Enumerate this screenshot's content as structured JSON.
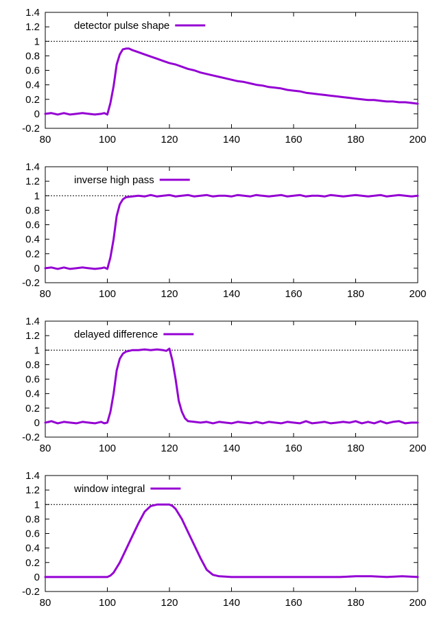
{
  "colors": {
    "series": "#9400d3",
    "axis": "#000000",
    "reference": "#000000"
  },
  "chart_data": [
    {
      "type": "line",
      "legend_position": "top-left",
      "xlim": [
        80,
        200
      ],
      "ylim": [
        -0.2,
        1.4
      ],
      "xticks": [
        80,
        100,
        120,
        140,
        160,
        180,
        200
      ],
      "yticks": [
        -0.2,
        0,
        0.2,
        0.4,
        0.6,
        0.8,
        1,
        1.2,
        1.4
      ],
      "reference_line": {
        "y": 1,
        "style": "dotted"
      },
      "series": [
        {
          "name": "detector pulse shape",
          "x": [
            80,
            82,
            84,
            86,
            88,
            90,
            92,
            94,
            96,
            98,
            99,
            100,
            101,
            102,
            103,
            104,
            105,
            106,
            107,
            108,
            110,
            112,
            114,
            116,
            118,
            120,
            122,
            124,
            126,
            128,
            130,
            132,
            134,
            136,
            138,
            140,
            142,
            144,
            146,
            148,
            150,
            152,
            154,
            156,
            158,
            160,
            162,
            164,
            166,
            168,
            170,
            172,
            174,
            176,
            178,
            180,
            182,
            184,
            186,
            188,
            190,
            192,
            194,
            196,
            198,
            200
          ],
          "y": [
            0,
            0.01,
            -0.01,
            0.01,
            -0.01,
            0,
            0.01,
            0,
            -0.01,
            0,
            0.01,
            -0.01,
            0.15,
            0.38,
            0.68,
            0.82,
            0.89,
            0.9,
            0.9,
            0.88,
            0.85,
            0.82,
            0.79,
            0.76,
            0.73,
            0.7,
            0.68,
            0.65,
            0.62,
            0.6,
            0.57,
            0.55,
            0.53,
            0.51,
            0.49,
            0.47,
            0.45,
            0.44,
            0.42,
            0.4,
            0.39,
            0.37,
            0.36,
            0.35,
            0.33,
            0.32,
            0.31,
            0.29,
            0.28,
            0.27,
            0.26,
            0.25,
            0.24,
            0.23,
            0.22,
            0.21,
            0.2,
            0.19,
            0.19,
            0.18,
            0.17,
            0.17,
            0.16,
            0.16,
            0.15,
            0.14
          ]
        }
      ]
    },
    {
      "type": "line",
      "legend_position": "top-left",
      "xlim": [
        80,
        200
      ],
      "ylim": [
        -0.2,
        1.4
      ],
      "xticks": [
        80,
        100,
        120,
        140,
        160,
        180,
        200
      ],
      "yticks": [
        -0.2,
        0,
        0.2,
        0.4,
        0.6,
        0.8,
        1,
        1.2,
        1.4
      ],
      "reference_line": {
        "y": 1,
        "style": "dotted"
      },
      "series": [
        {
          "name": "inverse high pass",
          "x": [
            80,
            82,
            84,
            86,
            88,
            90,
            92,
            94,
            96,
            98,
            99,
            100,
            101,
            102,
            103,
            104,
            105,
            106,
            108,
            110,
            112,
            114,
            116,
            118,
            120,
            122,
            124,
            126,
            128,
            130,
            132,
            134,
            136,
            138,
            140,
            142,
            144,
            146,
            148,
            150,
            152,
            154,
            156,
            158,
            160,
            162,
            164,
            166,
            168,
            170,
            172,
            174,
            176,
            178,
            180,
            182,
            184,
            186,
            188,
            190,
            192,
            194,
            196,
            198,
            200
          ],
          "y": [
            0,
            0.01,
            -0.01,
            0.01,
            -0.01,
            0,
            0.01,
            0,
            -0.01,
            0,
            0.01,
            -0.01,
            0.15,
            0.4,
            0.72,
            0.88,
            0.95,
            0.98,
            0.99,
            1,
            0.99,
            1.01,
            0.99,
            1,
            1.01,
            0.99,
            1,
            1.01,
            0.99,
            1,
            1.01,
            0.99,
            1,
            1,
            0.99,
            1.01,
            1,
            0.99,
            1.01,
            1,
            0.99,
            1,
            1.01,
            0.99,
            1,
            1.01,
            0.99,
            1,
            1,
            0.99,
            1.01,
            1,
            0.99,
            1,
            1.01,
            1,
            0.99,
            1,
            1.01,
            0.99,
            1,
            1.01,
            1,
            0.99,
            1
          ]
        }
      ]
    },
    {
      "type": "line",
      "legend_position": "top-left",
      "xlim": [
        80,
        200
      ],
      "ylim": [
        -0.2,
        1.4
      ],
      "xticks": [
        80,
        100,
        120,
        140,
        160,
        180,
        200
      ],
      "yticks": [
        -0.2,
        0,
        0.2,
        0.4,
        0.6,
        0.8,
        1,
        1.2,
        1.4
      ],
      "reference_line": {
        "y": 1,
        "style": "dotted"
      },
      "series": [
        {
          "name": "delayed difference",
          "x": [
            80,
            82,
            84,
            86,
            88,
            90,
            92,
            94,
            96,
            98,
            99,
            100,
            101,
            102,
            103,
            104,
            105,
            106,
            108,
            110,
            112,
            114,
            116,
            118,
            119,
            120,
            121,
            122,
            123,
            124,
            125,
            126,
            128,
            130,
            132,
            134,
            136,
            138,
            140,
            142,
            144,
            146,
            148,
            150,
            152,
            154,
            156,
            158,
            160,
            162,
            164,
            166,
            168,
            170,
            172,
            174,
            176,
            178,
            180,
            182,
            184,
            186,
            188,
            190,
            192,
            194,
            196,
            198,
            200
          ],
          "y": [
            0,
            0.02,
            -0.01,
            0.01,
            0,
            -0.01,
            0.01,
            0,
            -0.01,
            0.01,
            -0.01,
            0,
            0.15,
            0.4,
            0.72,
            0.88,
            0.95,
            0.98,
            1,
            1,
            1.01,
            1,
            1.01,
            1,
            0.99,
            1.02,
            0.85,
            0.6,
            0.3,
            0.15,
            0.06,
            0.02,
            0.01,
            0,
            0.01,
            -0.01,
            0.01,
            0,
            -0.01,
            0.01,
            0,
            -0.01,
            0.01,
            -0.01,
            0.01,
            0,
            -0.01,
            0.01,
            0,
            -0.01,
            0.02,
            -0.01,
            0,
            0.01,
            -0.01,
            0,
            0.01,
            0,
            0.02,
            -0.01,
            0.01,
            -0.01,
            0.02,
            -0.01,
            0.01,
            0.02,
            -0.01,
            0,
            0
          ]
        }
      ]
    },
    {
      "type": "line",
      "legend_position": "top-left",
      "xlim": [
        80,
        200
      ],
      "ylim": [
        -0.2,
        1.4
      ],
      "xticks": [
        80,
        100,
        120,
        140,
        160,
        180,
        200
      ],
      "yticks": [
        -0.2,
        0,
        0.2,
        0.4,
        0.6,
        0.8,
        1,
        1.2,
        1.4
      ],
      "reference_line": {
        "y": 1,
        "style": "dotted"
      },
      "series": [
        {
          "name": "window integral",
          "x": [
            80,
            84,
            88,
            92,
            96,
            100,
            101,
            102,
            104,
            106,
            108,
            110,
            112,
            114,
            116,
            118,
            120,
            121,
            122,
            124,
            126,
            128,
            130,
            132,
            134,
            136,
            140,
            145,
            150,
            155,
            160,
            165,
            170,
            175,
            180,
            185,
            190,
            195,
            200
          ],
          "y": [
            0,
            0,
            0,
            0,
            0,
            0,
            0.02,
            0.06,
            0.2,
            0.38,
            0.56,
            0.74,
            0.9,
            0.98,
            1,
            1,
            1,
            0.98,
            0.94,
            0.8,
            0.62,
            0.44,
            0.26,
            0.1,
            0.03,
            0.01,
            0,
            0,
            0,
            0,
            0,
            0,
            0,
            0,
            0.01,
            0.01,
            0,
            0.01,
            0
          ]
        }
      ]
    }
  ]
}
